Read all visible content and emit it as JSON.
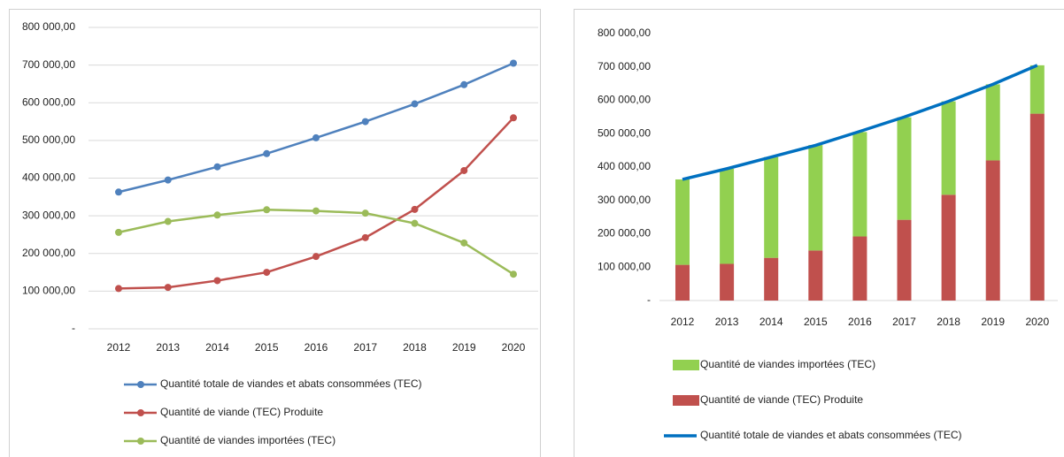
{
  "chart_data": [
    {
      "type": "line",
      "categories": [
        "2012",
        "2013",
        "2014",
        "2015",
        "2016",
        "2017",
        "2018",
        "2019",
        "2020"
      ],
      "series": [
        {
          "name": "Quantité totale de viandes et abats consommées (TEC)",
          "color": "#4f81bd",
          "values": [
            363000,
            395000,
            430000,
            465000,
            507000,
            550000,
            597000,
            648000,
            705000
          ]
        },
        {
          "name": "Quantité de viande (TEC) Produite",
          "color": "#c0504d",
          "values": [
            107000,
            110000,
            128000,
            150000,
            192000,
            242000,
            317000,
            420000,
            560000
          ]
        },
        {
          "name": "Quantité de viandes importées (TEC)",
          "color": "#9bbb59",
          "values": [
            256000,
            285000,
            302000,
            316000,
            313000,
            307000,
            280000,
            228000,
            145000
          ]
        }
      ],
      "ylim": [
        0,
        800000
      ],
      "yticks": [
        {
          "value": 0,
          "label": "-"
        },
        {
          "value": 100000,
          "label": "100 000,00"
        },
        {
          "value": 200000,
          "label": "200 000,00"
        },
        {
          "value": 300000,
          "label": "300 000,00"
        },
        {
          "value": 400000,
          "label": "400 000,00"
        },
        {
          "value": 500000,
          "label": "500 000,00"
        },
        {
          "value": 600000,
          "label": "600 000,00"
        },
        {
          "value": 700000,
          "label": "700 000,00"
        },
        {
          "value": 800000,
          "label": "800 000,00"
        }
      ],
      "grid": true,
      "legend": "bottom"
    },
    {
      "type": "combo",
      "stacked": true,
      "categories": [
        "2012",
        "2013",
        "2014",
        "2015",
        "2016",
        "2017",
        "2018",
        "2019",
        "2020"
      ],
      "series": [
        {
          "name": "Quantité de viandes importées (TEC)",
          "color": "#92d050",
          "type": "bar",
          "values": [
            256000,
            285000,
            302000,
            316000,
            313000,
            307000,
            280000,
            228000,
            145000
          ]
        },
        {
          "name": "Quantité de viande (TEC) Produite",
          "color": "#c0504d",
          "type": "bar",
          "values": [
            107000,
            110000,
            128000,
            150000,
            192000,
            242000,
            317000,
            420000,
            560000
          ]
        },
        {
          "name": "Quantité totale de viandes et abats consommées (TEC)",
          "color": "#0070c0",
          "type": "line",
          "values": [
            363000,
            395000,
            430000,
            465000,
            507000,
            550000,
            597000,
            648000,
            705000
          ]
        }
      ],
      "ylim": [
        0,
        800000
      ],
      "yticks": [
        {
          "value": 0,
          "label": "-"
        },
        {
          "value": 100000,
          "label": "100 000,00"
        },
        {
          "value": 200000,
          "label": "200 000,00"
        },
        {
          "value": 300000,
          "label": "300 000,00"
        },
        {
          "value": 400000,
          "label": "400 000,00"
        },
        {
          "value": 500000,
          "label": "500 000,00"
        },
        {
          "value": 600000,
          "label": "600 000,00"
        },
        {
          "value": 700000,
          "label": "700 000,00"
        },
        {
          "value": 800000,
          "label": "800 000,00"
        }
      ],
      "grid": false,
      "legend": "bottom"
    }
  ]
}
